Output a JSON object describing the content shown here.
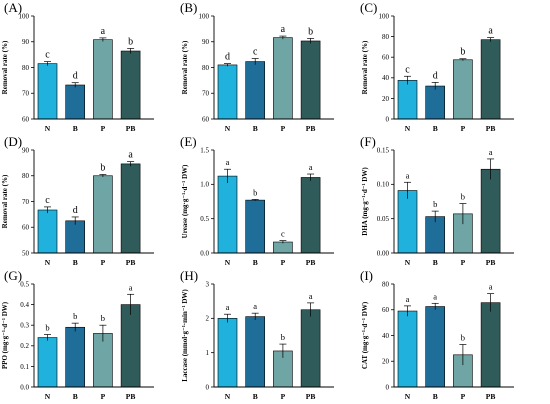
{
  "colors": {
    "N": "#20b2dc",
    "B": "#1f6e9a",
    "P": "#6fa5a4",
    "PB": "#2f5c5a",
    "axis": "#000000"
  },
  "chart_data": [
    {
      "label": "(A)",
      "type": "bar",
      "categories": [
        "N",
        "B",
        "P",
        "PB"
      ],
      "ylabel": "Removal rate (%)",
      "ylim": [
        60,
        100
      ],
      "yticks": [
        "60",
        "70",
        "80",
        "90",
        "100"
      ],
      "values": [
        81.5,
        73.2,
        90.8,
        86.4
      ],
      "errors": [
        0.8,
        0.9,
        0.7,
        1.0
      ],
      "sig": [
        "c",
        "d",
        "a",
        "b"
      ]
    },
    {
      "label": "(B)",
      "type": "bar",
      "categories": [
        "N",
        "B",
        "P",
        "PB"
      ],
      "ylabel": "Removal rate (%)",
      "ylim": [
        60,
        100
      ],
      "yticks": [
        "60",
        "70",
        "80",
        "90",
        "100"
      ],
      "values": [
        81.0,
        82.3,
        91.6,
        90.3
      ],
      "errors": [
        0.5,
        1.2,
        0.6,
        1.0
      ],
      "sig": [
        "d",
        "c",
        "a",
        "b"
      ]
    },
    {
      "label": "(C)",
      "type": "bar",
      "categories": [
        "N",
        "B",
        "P",
        "PB"
      ],
      "ylabel": "Removal rate (%)",
      "ylim": [
        0,
        100
      ],
      "yticks": [
        "0",
        "20",
        "40",
        "60",
        "80",
        "100"
      ],
      "values": [
        37.5,
        32.0,
        57.5,
        77.0
      ],
      "errors": [
        4.0,
        3.5,
        1.0,
        2.0
      ],
      "sig": [
        "c",
        "d",
        "b",
        "a"
      ]
    },
    {
      "label": "(D)",
      "type": "bar",
      "categories": [
        "N",
        "B",
        "P",
        "PB"
      ],
      "ylabel": "Removal rate (%)",
      "ylim": [
        50,
        90
      ],
      "yticks": [
        "50",
        "60",
        "70",
        "80",
        "90"
      ],
      "values": [
        66.7,
        62.5,
        80.0,
        84.6
      ],
      "errors": [
        1.2,
        1.5,
        0.5,
        0.9
      ],
      "sig": [
        "c",
        "d",
        "b",
        "a"
      ]
    },
    {
      "label": "(E)",
      "type": "bar",
      "categories": [
        "N",
        "B",
        "P",
        "PB"
      ],
      "ylabel": "Urease (mg·g⁻¹·d⁻¹ DW)",
      "ylim": [
        0,
        1.5
      ],
      "yticks": [
        "0.0",
        "0.5",
        "1.0",
        "1.5"
      ],
      "values": [
        1.12,
        0.77,
        0.16,
        1.1
      ],
      "errors": [
        0.1,
        0.01,
        0.02,
        0.05
      ],
      "sig": [
        "a",
        "b",
        "c",
        "a"
      ]
    },
    {
      "label": "(F)",
      "type": "bar",
      "categories": [
        "N",
        "B",
        "P",
        "PB"
      ],
      "ylabel": "DHA (mg·g⁻¹·d⁻¹ DW)",
      "ylim": [
        0,
        0.15
      ],
      "yticks": [
        "0.00",
        "0.05",
        "0.10",
        "0.15"
      ],
      "values": [
        0.091,
        0.053,
        0.057,
        0.122
      ],
      "errors": [
        0.012,
        0.008,
        0.015,
        0.015
      ],
      "sig": [
        "a",
        "b",
        "b",
        "a"
      ]
    },
    {
      "label": "(G)",
      "type": "bar",
      "categories": [
        "N",
        "B",
        "P",
        "PB"
      ],
      "ylabel": "PPO (mg·g⁻¹·d⁻¹ DW)",
      "ylim": [
        0,
        0.5
      ],
      "yticks": [
        "0.0",
        "0.1",
        "0.2",
        "0.3",
        "0.4",
        "0.5"
      ],
      "values": [
        0.24,
        0.29,
        0.26,
        0.4
      ],
      "errors": [
        0.015,
        0.02,
        0.04,
        0.05
      ],
      "sig": [
        "b",
        "b",
        "b",
        "a"
      ]
    },
    {
      "label": "(H)",
      "type": "bar",
      "categories": [
        "N",
        "B",
        "P",
        "PB"
      ],
      "ylabel": "Laccase (mmol·g⁻¹·min⁻¹ DW)",
      "ylim": [
        0,
        3
      ],
      "yticks": [
        "0",
        "1",
        "2",
        "3"
      ],
      "values": [
        2.0,
        2.05,
        1.05,
        2.25
      ],
      "errors": [
        0.12,
        0.1,
        0.2,
        0.2
      ],
      "sig": [
        "a",
        "a",
        "b",
        "a"
      ]
    },
    {
      "label": "(I)",
      "type": "bar",
      "categories": [
        "N",
        "B",
        "P",
        "PB"
      ],
      "ylabel": "CAT (mg·g⁻¹·d⁻¹ DW)",
      "ylim": [
        0,
        80
      ],
      "yticks": [
        "0",
        "20",
        "40",
        "60",
        "80"
      ],
      "values": [
        59.0,
        62.5,
        25.0,
        65.5
      ],
      "errors": [
        4.0,
        2.5,
        8.0,
        7.0
      ],
      "sig": [
        "a",
        "a",
        "b",
        "a"
      ]
    }
  ]
}
